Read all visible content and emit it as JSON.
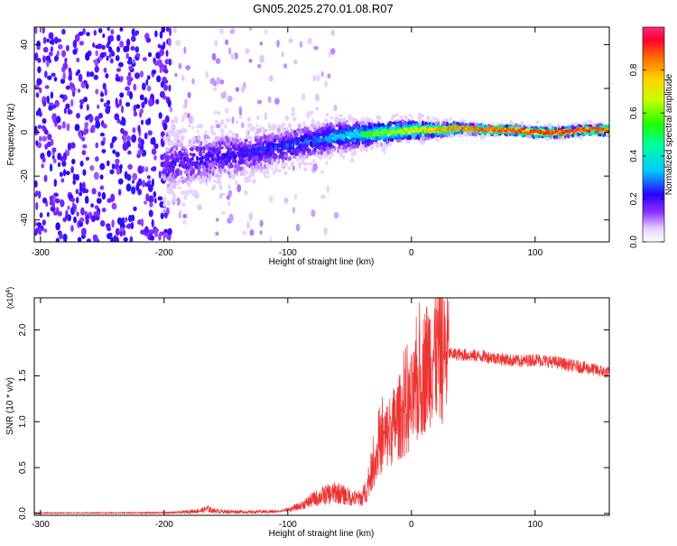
{
  "title": "GN05.2025.270.01.08.R07",
  "chart_data": [
    {
      "type": "heatmap",
      "xlabel": "Height of straight line (km)",
      "ylabel": "Frequency (Hz)",
      "xlim": [
        -305,
        160
      ],
      "ylim": [
        -50,
        48
      ],
      "xticks": [
        -300,
        -200,
        -100,
        0,
        100
      ],
      "xtick_labels": [
        "-300",
        "-200",
        "-100",
        "0",
        "100"
      ],
      "yticks": [
        -40,
        -20,
        0,
        20,
        40
      ],
      "ytick_labels": [
        "-40",
        "-20",
        "0",
        "20",
        "40"
      ],
      "colorbar": {
        "label": "Normalized spectral amplitude",
        "range": [
          0,
          1
        ],
        "ticks": [
          0.0,
          0.2,
          0.4,
          0.6,
          0.8
        ],
        "tick_labels": [
          "0.0",
          "0.2",
          "0.4",
          "0.6",
          "0.8"
        ],
        "colormap": "rainbow"
      },
      "ridge": {
        "x": [
          -200,
          -180,
          -160,
          -140,
          -120,
          -100,
          -80,
          -60,
          -40,
          -20,
          0,
          20,
          40,
          60,
          80,
          100,
          120,
          140,
          160
        ],
        "center_hz": [
          -15,
          -13,
          -11,
          -10,
          -8,
          -6,
          -4,
          -2,
          -1,
          0,
          1,
          1,
          2,
          1,
          1,
          0,
          0,
          1,
          1
        ],
        "amplitude": [
          0.22,
          0.24,
          0.25,
          0.26,
          0.27,
          0.3,
          0.32,
          0.38,
          0.45,
          0.55,
          0.62,
          0.7,
          0.76,
          0.78,
          0.8,
          0.8,
          0.82,
          0.8,
          0.78
        ]
      }
    },
    {
      "type": "line",
      "xlabel": "Height of straight line (km)",
      "ylabel": "SNR (10 * v/v)",
      "y_multiplier": "(x10",
      "y_multiplier_exp": "4",
      "y_multiplier_close": ")",
      "xlim": [
        -305,
        160
      ],
      "ylim": [
        -0.02,
        2.35
      ],
      "xticks": [
        -300,
        -200,
        -100,
        0,
        100
      ],
      "xtick_labels": [
        "-300",
        "-200",
        "-100",
        "0",
        "100"
      ],
      "yticks": [
        0.0,
        0.5,
        1.0,
        1.5,
        2.0
      ],
      "ytick_labels": [
        "0.0",
        "0.5",
        "1.0",
        "1.5",
        "2.0"
      ],
      "series": [
        {
          "color": "#ee3333",
          "x": [
            -305,
            -290,
            -270,
            -250,
            -230,
            -210,
            -190,
            -170,
            -165,
            -160,
            -150,
            -140,
            -130,
            -120,
            -110,
            -100,
            -90,
            -80,
            -70,
            -60,
            -55,
            -50,
            -45,
            -40,
            -35,
            -30,
            -25,
            -20,
            -15,
            -10,
            -5,
            0,
            5,
            10,
            15,
            20,
            25,
            30,
            40,
            50,
            60,
            70,
            80,
            90,
            100,
            110,
            120,
            130,
            140,
            150,
            160
          ],
          "y": [
            0.005,
            0.004,
            0.004,
            0.005,
            0.005,
            0.007,
            0.01,
            0.03,
            0.05,
            0.03,
            0.02,
            0.02,
            0.015,
            0.02,
            0.02,
            0.04,
            0.08,
            0.15,
            0.2,
            0.23,
            0.2,
            0.18,
            0.16,
            0.17,
            0.3,
            0.55,
            0.75,
            0.85,
            0.95,
            1.05,
            1.1,
            1.2,
            1.35,
            1.55,
            1.7,
            1.75,
            1.75,
            1.74,
            1.73,
            1.72,
            1.71,
            1.69,
            1.67,
            1.66,
            1.68,
            1.66,
            1.64,
            1.61,
            1.59,
            1.56,
            1.53
          ]
        }
      ]
    }
  ]
}
